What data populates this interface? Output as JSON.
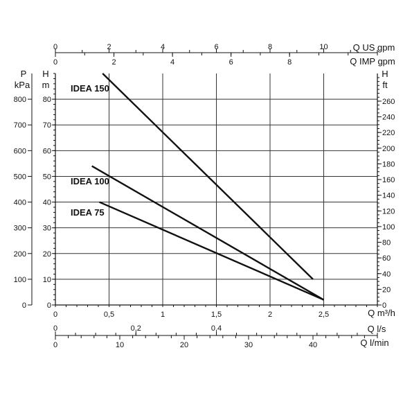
{
  "chart_data": {
    "type": "line",
    "flow_axes": [
      {
        "label": "Q US gpm",
        "ticks": [
          "0",
          "2",
          "4",
          "6",
          "8",
          "10"
        ],
        "range": [
          0,
          12
        ]
      },
      {
        "label": "Q IMP gpm",
        "ticks": [
          "0",
          "2",
          "4",
          "6",
          "8"
        ],
        "range": [
          0,
          11
        ]
      },
      {
        "label": "Q m³/h",
        "ticks": [
          "0",
          "0,5",
          "1",
          "1,5",
          "2",
          "2,5"
        ],
        "range": [
          0,
          3
        ]
      },
      {
        "label": "Q l/s",
        "ticks": [
          "0",
          "0,2",
          "0,4"
        ],
        "range": [
          0,
          0.8
        ]
      },
      {
        "label": "Q l/min",
        "ticks": [
          "0",
          "10",
          "20",
          "30",
          "40"
        ],
        "range": [
          0,
          50
        ]
      }
    ],
    "head_axes": {
      "pressure": {
        "label_top": "P",
        "label_unit": "kPa",
        "ticks": [
          "0",
          "100",
          "200",
          "300",
          "400",
          "500",
          "600",
          "700",
          "800"
        ]
      },
      "head_m": {
        "label_top": "H",
        "label_unit": "m",
        "ticks": [
          "0",
          "10",
          "20",
          "30",
          "40",
          "50",
          "60",
          "70",
          "80"
        ]
      },
      "head_ft": {
        "label_top": "H",
        "label_unit": "ft",
        "ticks": [
          "0",
          "20",
          "40",
          "60",
          "80",
          "100",
          "120",
          "140",
          "160",
          "180",
          "200",
          "220",
          "240",
          "260"
        ]
      }
    },
    "xlim": [
      0,
      3
    ],
    "ylim": [
      0,
      90
    ],
    "grid": true,
    "series": [
      {
        "name": "IDEA 150",
        "x": [
          0.44,
          2.4
        ],
        "y": [
          90,
          10
        ]
      },
      {
        "name": "IDEA 100",
        "x": [
          0.34,
          2.5
        ],
        "y": [
          54,
          2
        ]
      },
      {
        "name": "IDEA 75",
        "x": [
          0.41,
          2.5
        ],
        "y": [
          40,
          2
        ]
      }
    ]
  }
}
